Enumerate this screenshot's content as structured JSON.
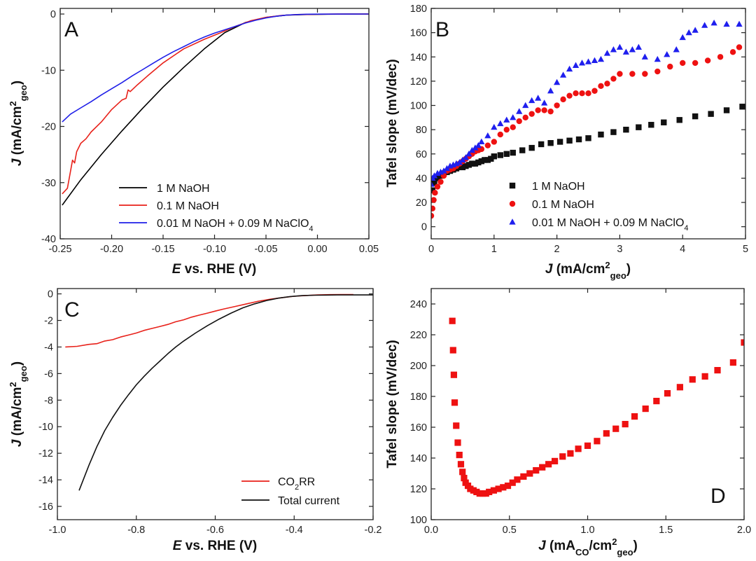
{
  "figure": {
    "panels": [
      {
        "id": "A",
        "label": "A",
        "xlabel": {
          "pre": "",
          "italic": "E",
          "rest": " vs. RHE (V)",
          "sub": "",
          "after": "",
          "sub2": "",
          "close": ""
        },
        "ylabel": {
          "italic": "J",
          "pre": " (mA/cm",
          "sup": "2",
          "sub": "geo",
          "post": ")"
        }
      },
      {
        "id": "B",
        "label": "B",
        "xlabel": {
          "pre": "",
          "italic": "J",
          "rest": " (mA/cm",
          "sup": "2",
          "sub": "geo",
          "close": ")"
        },
        "ylabel": {
          "text": "Tafel slope (mV/dec)"
        }
      },
      {
        "id": "C",
        "label": "C",
        "xlabel": {
          "italic": "E",
          "rest": " vs. RHE (V)"
        },
        "ylabel": {
          "italic": "J",
          "pre": " (mA/cm",
          "sup": "2",
          "sub": "geo",
          "post": ")"
        }
      },
      {
        "id": "D",
        "label": "D",
        "xlabel": {
          "italic": "J",
          "rest": " (mA",
          "sub1": "CO",
          "mid": "/cm",
          "sup": "2",
          "sub2": "geo",
          "close": ")"
        },
        "ylabel": {
          "text": "Tafel slope (mV/dec)"
        }
      }
    ]
  },
  "chart_data": [
    {
      "panel": "A",
      "type": "line",
      "title": "",
      "xlabel": "E vs. RHE (V)",
      "ylabel": "J (mA/cm2geo)",
      "xlim": [
        -0.25,
        0.05
      ],
      "ylim": [
        -40,
        1
      ],
      "xticks": [
        -0.25,
        -0.2,
        -0.15,
        -0.1,
        -0.05,
        0.0,
        0.05
      ],
      "xtick_labels": [
        "-0.25",
        "-0.20",
        "-0.15",
        "-0.10",
        "-0.05",
        "0.00",
        "0.05"
      ],
      "yticks": [
        -40,
        -30,
        -20,
        -10,
        0
      ],
      "ytick_labels": [
        "-40",
        "-30",
        "-20",
        "-10",
        "0"
      ],
      "legend_position": "bottom-right",
      "series": [
        {
          "name": "1 M NaOH",
          "legend_parts": [
            "1 M NaOH"
          ],
          "color": "#000000",
          "x": [
            -0.248,
            -0.23,
            -0.21,
            -0.19,
            -0.17,
            -0.15,
            -0.13,
            -0.11,
            -0.09,
            -0.07,
            -0.05,
            -0.03,
            -0.01,
            0.01,
            0.03,
            0.05
          ],
          "y": [
            -34.0,
            -29.5,
            -25.0,
            -20.8,
            -16.8,
            -13.0,
            -9.5,
            -6.2,
            -3.3,
            -1.5,
            -0.6,
            -0.2,
            -0.08,
            -0.03,
            -0.01,
            0.0
          ]
        },
        {
          "name": "0.1 M NaOH",
          "legend_parts": [
            "0.1 M NaOH"
          ],
          "color": "#e8211a",
          "x": [
            -0.248,
            -0.243,
            -0.24,
            -0.238,
            -0.236,
            -0.234,
            -0.23,
            -0.225,
            -0.22,
            -0.21,
            -0.2,
            -0.19,
            -0.186,
            -0.184,
            -0.182,
            -0.175,
            -0.165,
            -0.15,
            -0.13,
            -0.11,
            -0.095,
            -0.08,
            -0.065,
            -0.05,
            -0.035,
            -0.02,
            0.0,
            0.02,
            0.05
          ],
          "y": [
            -32.0,
            -31.0,
            -28.0,
            -26.0,
            -26.5,
            -24.5,
            -23.0,
            -22.2,
            -21.0,
            -19.2,
            -17.0,
            -15.3,
            -15.0,
            -13.5,
            -13.8,
            -12.6,
            -11.0,
            -8.7,
            -6.2,
            -4.5,
            -3.4,
            -2.2,
            -1.2,
            -0.6,
            -0.25,
            -0.1,
            -0.03,
            -0.01,
            0.0
          ]
        },
        {
          "name": "0.01 M NaOH + 0.09 M NaClO4",
          "legend_parts": [
            "0.01 M NaOH + 0.09 M NaClO",
            "4",
            ""
          ],
          "color": "#1f1fe8",
          "x": [
            -0.248,
            -0.24,
            -0.23,
            -0.22,
            -0.21,
            -0.2,
            -0.19,
            -0.18,
            -0.17,
            -0.16,
            -0.15,
            -0.14,
            -0.13,
            -0.12,
            -0.11,
            -0.1,
            -0.09,
            -0.08,
            -0.07,
            -0.06,
            -0.05,
            -0.04,
            -0.03,
            -0.02,
            -0.01,
            0.0,
            0.02,
            0.05
          ],
          "y": [
            -19.2,
            -17.8,
            -16.7,
            -15.6,
            -14.4,
            -13.3,
            -12.2,
            -11.0,
            -9.9,
            -8.8,
            -7.7,
            -6.7,
            -5.8,
            -4.9,
            -4.1,
            -3.4,
            -2.8,
            -2.2,
            -1.6,
            -1.1,
            -0.7,
            -0.4,
            -0.2,
            -0.1,
            -0.04,
            -0.02,
            -0.01,
            0.0
          ]
        }
      ]
    },
    {
      "panel": "B",
      "type": "scatter",
      "title": "",
      "xlabel": "J (mA/cm2geo)",
      "ylabel": "Tafel slope (mV/dec)",
      "xlim": [
        0,
        5
      ],
      "ylim": [
        -10,
        180
      ],
      "xticks": [
        0,
        1,
        2,
        3,
        4,
        5
      ],
      "xtick_labels": [
        "0",
        "1",
        "2",
        "3",
        "4",
        "5"
      ],
      "yticks": [
        0,
        20,
        40,
        60,
        80,
        100,
        120,
        140,
        160,
        180
      ],
      "ytick_labels": [
        "0",
        "20",
        "40",
        "60",
        "80",
        "100",
        "120",
        "140",
        "160",
        "180"
      ],
      "legend_position": "bottom-right",
      "series": [
        {
          "name": "1 M NaOH",
          "legend_parts": [
            "1 M NaOH"
          ],
          "color": "#111111",
          "marker": "square",
          "x": [
            0.02,
            0.05,
            0.1,
            0.15,
            0.2,
            0.25,
            0.3,
            0.35,
            0.4,
            0.45,
            0.5,
            0.55,
            0.6,
            0.65,
            0.7,
            0.75,
            0.8,
            0.85,
            0.9,
            0.95,
            1.0,
            1.1,
            1.2,
            1.3,
            1.45,
            1.6,
            1.75,
            1.9,
            2.05,
            2.2,
            2.35,
            2.5,
            2.7,
            2.9,
            3.1,
            3.3,
            3.5,
            3.7,
            3.95,
            4.2,
            4.45,
            4.7,
            4.95
          ],
          "y": [
            30,
            36,
            40,
            42,
            44,
            45,
            46,
            47,
            48,
            49,
            49,
            50,
            51,
            52,
            52,
            53,
            54,
            55,
            55,
            56,
            58,
            59,
            60,
            61,
            63,
            65,
            68,
            69,
            70,
            71,
            72,
            73,
            76,
            78,
            80,
            82,
            84,
            86,
            88,
            91,
            93,
            96,
            99
          ]
        },
        {
          "name": "0.1 M NaOH",
          "legend_parts": [
            "0.1 M NaOH"
          ],
          "color": "#ee1111",
          "marker": "circle",
          "x": [
            0.0,
            0.02,
            0.04,
            0.06,
            0.1,
            0.15,
            0.2,
            0.25,
            0.3,
            0.35,
            0.4,
            0.45,
            0.5,
            0.55,
            0.6,
            0.65,
            0.7,
            0.75,
            0.8,
            0.9,
            1.0,
            1.1,
            1.2,
            1.3,
            1.4,
            1.5,
            1.6,
            1.7,
            1.8,
            1.9,
            2.0,
            2.1,
            2.2,
            2.3,
            2.4,
            2.5,
            2.6,
            2.7,
            2.8,
            2.9,
            3.0,
            3.2,
            3.4,
            3.6,
            3.8,
            4.0,
            4.2,
            4.4,
            4.6,
            4.8,
            4.9
          ],
          "y": [
            9,
            15,
            22,
            28,
            33,
            37,
            42,
            46,
            47,
            48,
            50,
            52,
            54,
            56,
            58,
            60,
            62,
            63,
            64,
            67,
            70,
            76,
            80,
            82,
            87,
            90,
            93,
            96,
            96,
            95,
            100,
            105,
            108,
            110,
            110,
            110,
            112,
            116,
            118,
            122,
            126,
            126,
            126,
            128,
            132,
            135,
            135,
            137,
            140,
            144,
            148
          ]
        },
        {
          "name": "0.01 M NaOH + 0.09 M NaClO4",
          "legend_parts": [
            "0.01 M NaOH + 0.09 M NaClO",
            "4",
            ""
          ],
          "color": "#1f1fee",
          "marker": "triangle",
          "x": [
            0.0,
            0.02,
            0.05,
            0.1,
            0.15,
            0.2,
            0.25,
            0.3,
            0.35,
            0.4,
            0.45,
            0.5,
            0.55,
            0.6,
            0.65,
            0.7,
            0.75,
            0.8,
            0.9,
            1.0,
            1.1,
            1.2,
            1.3,
            1.4,
            1.5,
            1.6,
            1.7,
            1.8,
            1.9,
            2.0,
            2.1,
            2.2,
            2.3,
            2.4,
            2.5,
            2.6,
            2.7,
            2.8,
            2.9,
            3.0,
            3.1,
            3.2,
            3.3,
            3.4,
            3.6,
            3.75,
            3.9,
            4.0,
            4.1,
            4.2,
            4.35,
            4.5,
            4.7,
            4.9
          ],
          "y": [
            35,
            40,
            42,
            44,
            45,
            46,
            48,
            50,
            51,
            52,
            53,
            55,
            57,
            60,
            63,
            65,
            67,
            70,
            75,
            82,
            85,
            88,
            90,
            95,
            100,
            104,
            106,
            102,
            112,
            119,
            125,
            130,
            133,
            135,
            136,
            137,
            138,
            143,
            146,
            148,
            144,
            146,
            148,
            140,
            138,
            142,
            146,
            156,
            160,
            162,
            166,
            168,
            167,
            167
          ]
        }
      ]
    },
    {
      "panel": "C",
      "type": "line",
      "title": "",
      "xlabel": "E vs. RHE (V)",
      "ylabel": "J (mA/cm2geo)",
      "xlim": [
        -1.0,
        -0.2
      ],
      "ylim": [
        -17,
        0.4
      ],
      "xticks": [
        -1.0,
        -0.8,
        -0.6,
        -0.4,
        -0.2
      ],
      "xtick_labels": [
        "-1.0",
        "-0.8",
        "-0.6",
        "-0.4",
        "-0.2"
      ],
      "yticks": [
        -16,
        -14,
        -12,
        -10,
        -8,
        -6,
        -4,
        -2,
        0
      ],
      "ytick_labels": [
        "-16",
        "-14",
        "-12",
        "-10",
        "-8",
        "-6",
        "-4",
        "-2",
        "0"
      ],
      "legend_position": "bottom-right",
      "series": [
        {
          "name": "CO2RR",
          "legend_parts": [
            "CO",
            "2",
            "RR"
          ],
          "color": "#e8211a",
          "x": [
            -0.98,
            -0.95,
            -0.92,
            -0.9,
            -0.88,
            -0.86,
            -0.84,
            -0.82,
            -0.8,
            -0.78,
            -0.76,
            -0.74,
            -0.72,
            -0.7,
            -0.68,
            -0.66,
            -0.64,
            -0.62,
            -0.6,
            -0.58,
            -0.55,
            -0.52,
            -0.49,
            -0.46,
            -0.43,
            -0.4,
            -0.37,
            -0.34,
            -0.31,
            -0.28,
            -0.25
          ],
          "y": [
            -4.0,
            -3.95,
            -3.8,
            -3.75,
            -3.55,
            -3.45,
            -3.25,
            -3.1,
            -2.95,
            -2.75,
            -2.6,
            -2.45,
            -2.3,
            -2.1,
            -1.95,
            -1.75,
            -1.6,
            -1.45,
            -1.3,
            -1.15,
            -0.95,
            -0.75,
            -0.55,
            -0.4,
            -0.28,
            -0.18,
            -0.12,
            -0.08,
            -0.06,
            -0.05,
            -0.05
          ]
        },
        {
          "name": "Total current",
          "legend_parts": [
            "Total current"
          ],
          "color": "#111111",
          "x": [
            -0.945,
            -0.92,
            -0.9,
            -0.88,
            -0.86,
            -0.84,
            -0.82,
            -0.8,
            -0.78,
            -0.76,
            -0.74,
            -0.72,
            -0.7,
            -0.68,
            -0.65,
            -0.62,
            -0.59,
            -0.56,
            -0.53,
            -0.5,
            -0.47,
            -0.44,
            -0.41,
            -0.38,
            -0.35,
            -0.32,
            -0.29,
            -0.26,
            -0.23,
            -0.2
          ],
          "y": [
            -14.8,
            -12.9,
            -11.5,
            -10.3,
            -9.3,
            -8.4,
            -7.6,
            -6.85,
            -6.2,
            -5.6,
            -5.05,
            -4.5,
            -4.0,
            -3.55,
            -2.95,
            -2.4,
            -1.9,
            -1.45,
            -1.05,
            -0.75,
            -0.5,
            -0.32,
            -0.2,
            -0.13,
            -0.1,
            -0.09,
            -0.08,
            -0.08,
            -0.08,
            -0.08
          ]
        }
      ]
    },
    {
      "panel": "D",
      "type": "scatter",
      "title": "",
      "xlabel": "J (mACO/cm2geo)",
      "ylabel": "Tafel slope (mV/dec)",
      "xlim": [
        0.0,
        2.0
      ],
      "ylim": [
        100,
        250
      ],
      "xticks": [
        0.0,
        0.5,
        1.0,
        1.5,
        2.0
      ],
      "xtick_labels": [
        "0.0",
        "0.5",
        "1.0",
        "1.5",
        "2.0"
      ],
      "yticks": [
        100,
        120,
        140,
        160,
        180,
        200,
        220,
        240
      ],
      "ytick_labels": [
        "100",
        "120",
        "140",
        "160",
        "180",
        "200",
        "220",
        "240"
      ],
      "series": [
        {
          "name": "Tafel slope",
          "color": "#ee1111",
          "marker": "square",
          "x": [
            0.135,
            0.14,
            0.145,
            0.15,
            0.16,
            0.17,
            0.18,
            0.19,
            0.2,
            0.21,
            0.22,
            0.235,
            0.25,
            0.27,
            0.29,
            0.31,
            0.33,
            0.35,
            0.37,
            0.4,
            0.43,
            0.46,
            0.49,
            0.52,
            0.55,
            0.59,
            0.63,
            0.67,
            0.71,
            0.75,
            0.79,
            0.84,
            0.89,
            0.94,
            1.0,
            1.06,
            1.12,
            1.18,
            1.24,
            1.3,
            1.37,
            1.44,
            1.51,
            1.59,
            1.67,
            1.75,
            1.83,
            1.93,
            2.0
          ],
          "y": [
            229,
            210,
            194,
            176,
            161,
            150,
            142,
            136,
            131,
            127,
            124,
            122,
            120,
            119,
            118,
            117,
            117,
            117,
            118,
            119,
            120,
            121,
            122,
            124,
            126,
            128,
            130,
            132,
            134,
            136,
            138,
            141,
            143,
            146,
            148,
            151,
            156,
            159,
            162,
            167,
            172,
            177,
            182,
            186,
            191,
            193,
            197,
            202,
            215
          ]
        }
      ]
    }
  ]
}
